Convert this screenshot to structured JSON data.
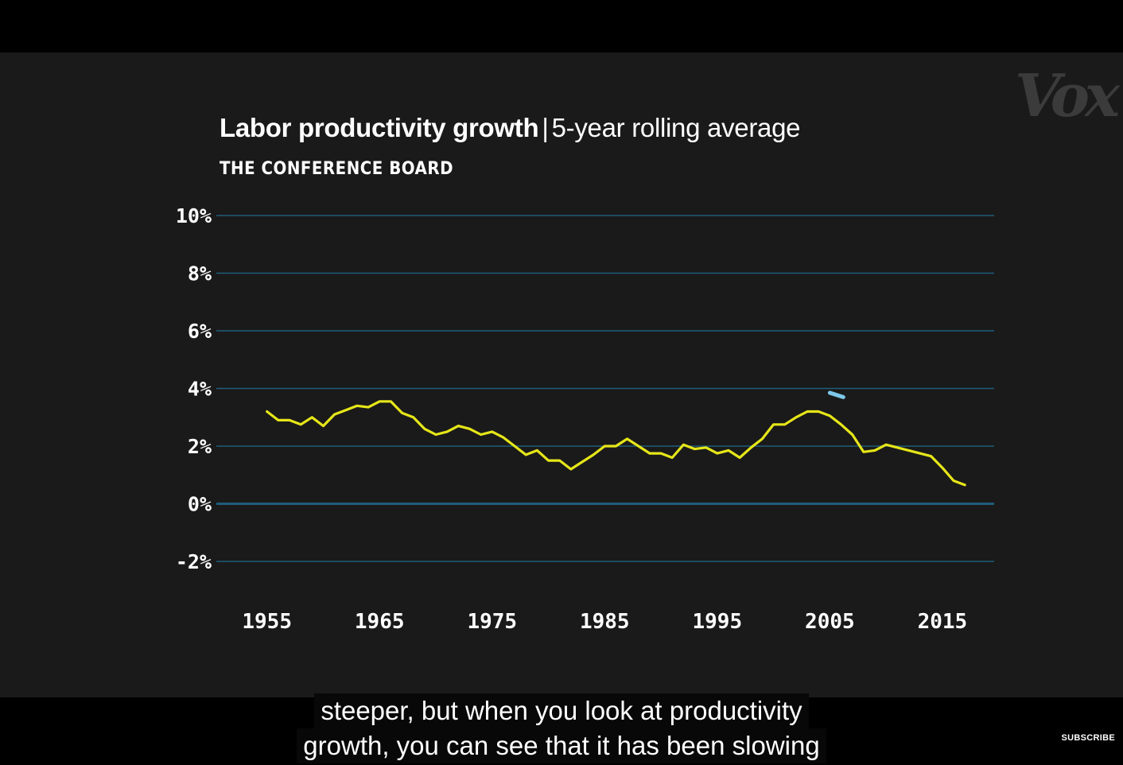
{
  "caption": {
    "line1": "steeper, but when you look at productivity",
    "line2": "growth, you can see that it has been slowing"
  },
  "logo": {
    "text": "Vox"
  },
  "subscribe": {
    "label": "SUBSCRIBE"
  },
  "colors": {
    "background": "#1a1a1a",
    "line": "#e6e619",
    "grid": "#1f5d7a",
    "marker": "#7ec8ea"
  },
  "chart_data": {
    "type": "line",
    "title": "Labor productivity growth",
    "title_separator": "|",
    "subtitle": "5-year rolling average",
    "source": "THE CONFERENCE BOARD",
    "xlim": [
      1950.5,
      2019.6
    ],
    "ylim": [
      -2,
      10
    ],
    "y_ticks": [
      10,
      8,
      6,
      4,
      2,
      0,
      -2
    ],
    "y_tick_labels": [
      "10%",
      "8%",
      "6%",
      "4%",
      "2%",
      "0%",
      "-2%"
    ],
    "x_ticks": [
      1955,
      1965,
      1975,
      1985,
      1995,
      2005,
      2015
    ],
    "x_tick_labels": [
      "1955",
      "1965",
      "1975",
      "1985",
      "1995",
      "2005",
      "2015"
    ],
    "grid": true,
    "series": [
      {
        "x": [
          1955,
          1956,
          1957,
          1958,
          1959,
          1960,
          1961,
          1962,
          1963,
          1964,
          1965,
          1966,
          1967,
          1968,
          1969,
          1970,
          1971,
          1972,
          1973,
          1974,
          1975,
          1976,
          1977,
          1978,
          1979,
          1980,
          1981,
          1982,
          1983,
          1984,
          1985,
          1986,
          1987,
          1988,
          1989,
          1990,
          1991,
          1992,
          1993,
          1994,
          1995,
          1996,
          1997,
          1998,
          1999,
          2000,
          2001,
          2002,
          2003,
          2004,
          2005,
          2006,
          2007,
          2008,
          2009,
          2010,
          2011,
          2012,
          2013,
          2014,
          2015,
          2016,
          2017
        ],
        "y": [
          3.2,
          2.9,
          2.9,
          2.75,
          3.0,
          2.7,
          3.1,
          3.25,
          3.4,
          3.35,
          3.55,
          3.55,
          3.15,
          3.0,
          2.6,
          2.4,
          2.5,
          2.7,
          2.6,
          2.4,
          2.5,
          2.3,
          2.0,
          1.7,
          1.85,
          1.5,
          1.5,
          1.2,
          1.45,
          1.7,
          2.0,
          2.0,
          2.25,
          2.0,
          1.75,
          1.75,
          1.6,
          2.05,
          1.9,
          1.95,
          1.75,
          1.85,
          1.6,
          1.95,
          2.25,
          2.75,
          2.75,
          3.0,
          3.2,
          3.2,
          3.05,
          2.75,
          2.4,
          1.8,
          1.85,
          2.05,
          1.95,
          1.85,
          1.75,
          1.65,
          1.25,
          0.8,
          0.65
        ]
      }
    ],
    "marker": {
      "x": [
        2005.0,
        2006.2
      ],
      "y": [
        3.85,
        3.7
      ]
    }
  }
}
